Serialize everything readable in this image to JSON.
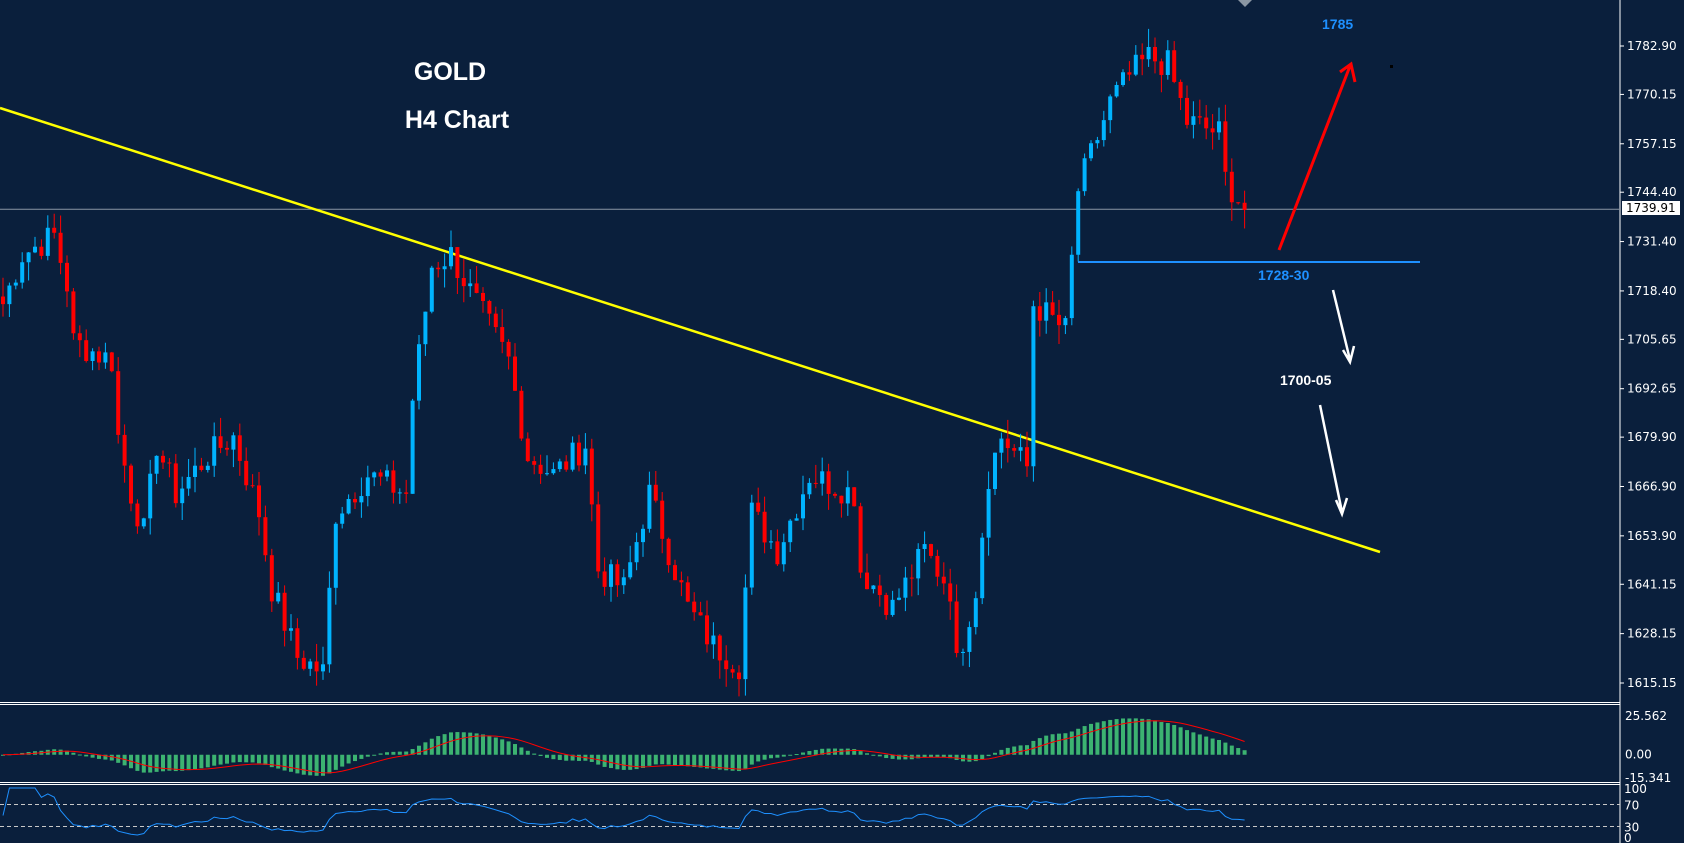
{
  "title": {
    "symbol": "GOLD",
    "timeframe": "H4 Chart"
  },
  "annotations": {
    "target": "1785",
    "support": "1728-30",
    "lower_target": "1700-05"
  },
  "current_price": "1739.91",
  "colors": {
    "background": "#0a1f3c",
    "bull": "#00b4ff",
    "bear": "#ff0000",
    "trendline": "#ffff00",
    "support": "#1e90ff",
    "macd_hist": "#3cb371",
    "macd_signal": "#ff0000",
    "rsi": "#1e90ff"
  },
  "chart_data": {
    "type": "candlestick",
    "title": "GOLD H4 Chart",
    "price_axis": {
      "ticks": [
        "1782.90",
        "1770.15",
        "1757.15",
        "1744.40",
        "1731.40",
        "1718.40",
        "1705.65",
        "1692.65",
        "1679.90",
        "1666.90",
        "1653.90",
        "1641.15",
        "1628.15",
        "1615.15"
      ],
      "range": [
        1615.15,
        1782.9
      ]
    },
    "candles_count": 195,
    "close_path": [
      [
        0,
        1715
      ],
      [
        3,
        1728
      ],
      [
        8,
        1733
      ],
      [
        10,
        1720
      ],
      [
        11,
        1705
      ],
      [
        17,
        1700
      ],
      [
        18,
        1680
      ],
      [
        20,
        1665
      ],
      [
        22,
        1655
      ],
      [
        24,
        1678
      ],
      [
        27,
        1665
      ],
      [
        32,
        1675
      ],
      [
        36,
        1680
      ],
      [
        40,
        1660
      ],
      [
        42,
        1640
      ],
      [
        46,
        1622
      ],
      [
        50,
        1618
      ],
      [
        52,
        1660
      ],
      [
        57,
        1670
      ],
      [
        63,
        1665
      ],
      [
        64,
        1690
      ],
      [
        67,
        1725
      ],
      [
        70,
        1728
      ],
      [
        74,
        1715
      ],
      [
        79,
        1700
      ],
      [
        82,
        1675
      ],
      [
        86,
        1670
      ],
      [
        91,
        1678
      ],
      [
        93,
        1645
      ],
      [
        97,
        1640
      ],
      [
        101,
        1665
      ],
      [
        107,
        1635
      ],
      [
        111,
        1625
      ],
      [
        115,
        1620
      ],
      [
        117,
        1660
      ],
      [
        121,
        1650
      ],
      [
        126,
        1670
      ],
      [
        133,
        1665
      ],
      [
        134,
        1645
      ],
      [
        139,
        1635
      ],
      [
        144,
        1650
      ],
      [
        148,
        1640
      ],
      [
        149,
        1620
      ],
      [
        152,
        1640
      ],
      [
        154,
        1670
      ],
      [
        156,
        1680
      ],
      [
        160,
        1672
      ],
      [
        161,
        1715
      ],
      [
        166,
        1708
      ],
      [
        168,
        1745
      ],
      [
        173,
        1768
      ],
      [
        176,
        1775
      ],
      [
        179,
        1780
      ],
      [
        182,
        1778
      ],
      [
        185,
        1763
      ],
      [
        190,
        1760
      ],
      [
        191,
        1748
      ],
      [
        194,
        1740
      ]
    ],
    "trendline": {
      "from_price": 1766,
      "to_price": 1650
    },
    "support_level": 1729,
    "macd": {
      "axis_ticks": [
        "25.562",
        "0.00",
        "-15.341"
      ],
      "range": [
        -15.341,
        25.562
      ]
    },
    "rsi": {
      "axis_ticks": [
        "100",
        "70",
        "30",
        "0"
      ],
      "levels": [
        70,
        30
      ],
      "range": [
        0,
        100
      ]
    }
  }
}
